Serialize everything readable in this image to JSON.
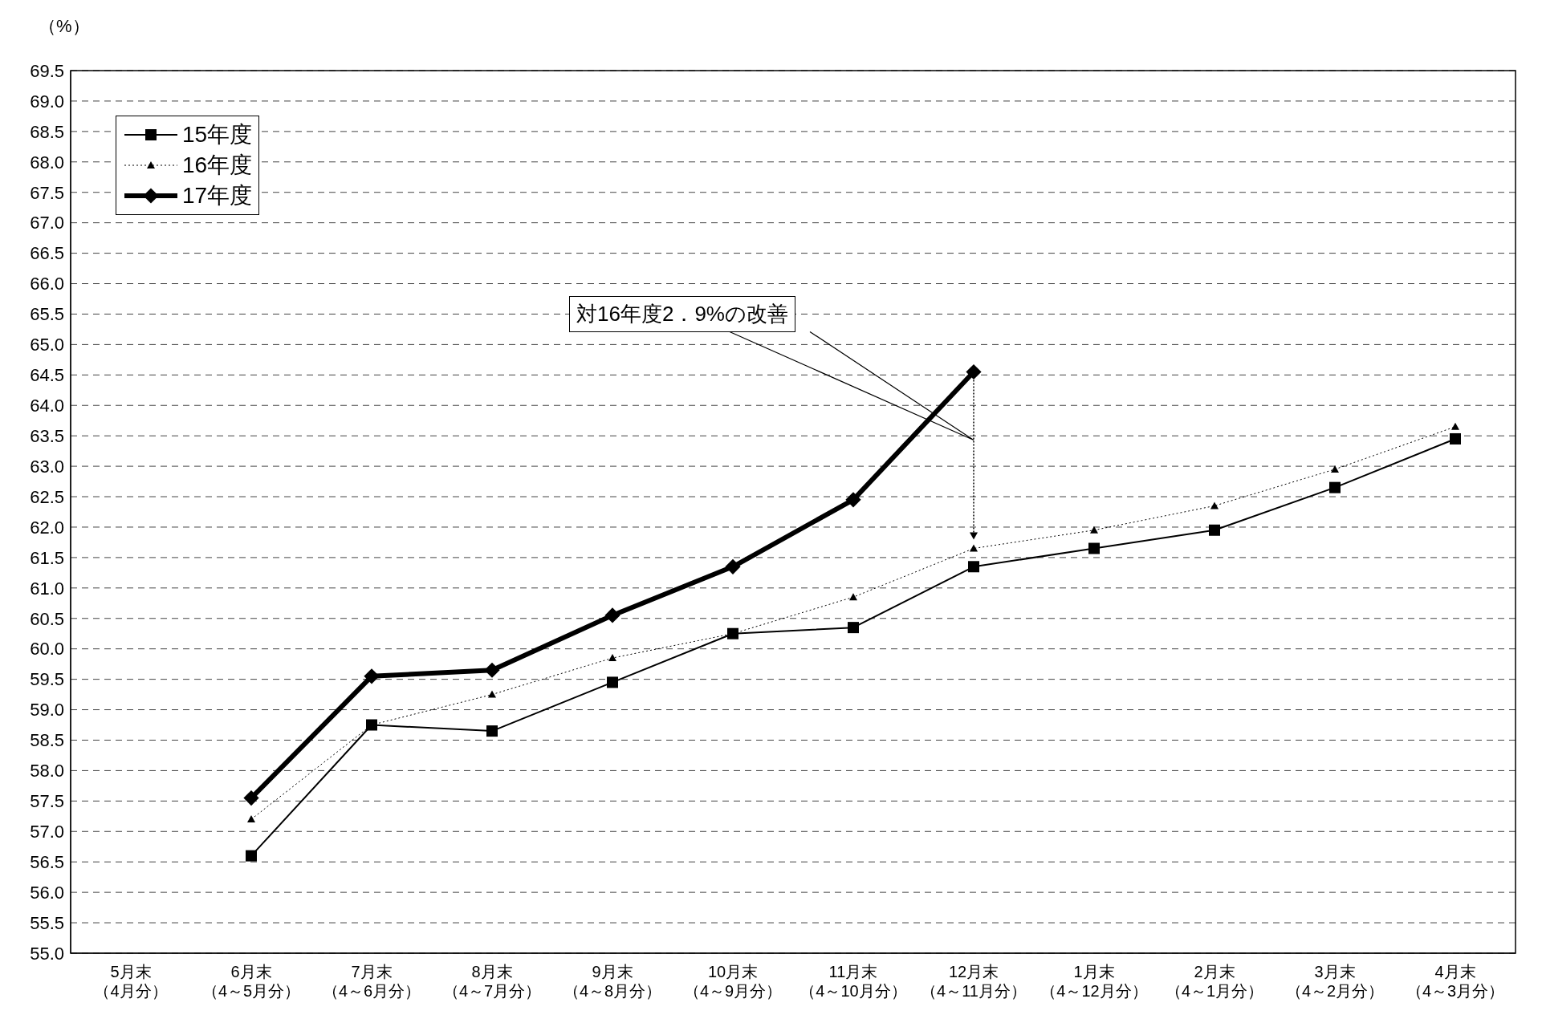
{
  "chart_data": {
    "type": "line",
    "ylabel": "（%）",
    "categories": [
      "5月末（4月分）",
      "6月末（4～5月分）",
      "7月末（4～6月分）",
      "8月末（4～7月分）",
      "9月末（4～8月分）",
      "10月末（4～9月分）",
      "11月末（4～10月分）",
      "12月末（4～11月分）",
      "1月末（4～12月分）",
      "2月末（4～1月分）",
      "3月末（4～2月分）",
      "4月末（4～3月分）"
    ],
    "series": [
      {
        "name": "15年度",
        "color": "#000000",
        "marker": "square",
        "line_style": "solid",
        "values": [
          null,
          56.6,
          58.75,
          58.65,
          59.45,
          60.25,
          60.35,
          61.35,
          61.65,
          61.95,
          62.65,
          63.45
        ]
      },
      {
        "name": "16年度",
        "color": "#000000",
        "marker": "triangle",
        "line_style": "dotted",
        "values": [
          null,
          57.2,
          58.75,
          59.25,
          59.85,
          60.25,
          60.85,
          61.65,
          61.95,
          62.35,
          62.95,
          63.65
        ]
      },
      {
        "name": "17年度",
        "color": "#000000",
        "marker": "diamond",
        "line_style": "solid",
        "values": [
          null,
          57.55,
          59.55,
          59.65,
          60.55,
          61.35,
          62.45,
          64.55,
          null,
          null,
          null,
          null
        ]
      }
    ],
    "ylim": [
      55,
      69.5
    ],
    "yticks": [
      {
        "value": 55,
        "label": "55.0"
      },
      {
        "value": 55.5,
        "label": "55.5"
      },
      {
        "value": 56,
        "label": "56.0"
      },
      {
        "value": 56.5,
        "label": "56.5"
      },
      {
        "value": 57,
        "label": "57.0"
      },
      {
        "value": 57.5,
        "label": "57.5"
      },
      {
        "value": 58,
        "label": "58.0"
      },
      {
        "value": 58.5,
        "label": "58.5"
      },
      {
        "value": 59,
        "label": "59.0"
      },
      {
        "value": 59.5,
        "label": "59.5"
      },
      {
        "value": 60,
        "label": "60.0"
      },
      {
        "value": 60.5,
        "label": "60.5"
      },
      {
        "value": 61,
        "label": "61.0"
      },
      {
        "value": 61.5,
        "label": "61.5"
      },
      {
        "value": 62,
        "label": "62.0"
      },
      {
        "value": 62.5,
        "label": "62.5"
      },
      {
        "value": 63,
        "label": "63.0"
      },
      {
        "value": 63.5,
        "label": "63.5"
      },
      {
        "value": 64,
        "label": "64.0"
      },
      {
        "value": 64.5,
        "label": "64.5"
      },
      {
        "value": 65,
        "label": "65.0"
      },
      {
        "value": 65.5,
        "label": "65.5"
      },
      {
        "value": 66,
        "label": "66.0"
      },
      {
        "value": 66.5,
        "label": "66.5"
      },
      {
        "value": 67,
        "label": "67.0"
      },
      {
        "value": 67.5,
        "label": "67.5"
      },
      {
        "value": 68,
        "label": "68.0"
      },
      {
        "value": 68.5,
        "label": "68.5"
      },
      {
        "value": 69,
        "label": "69.0"
      },
      {
        "value": 69.5,
        "label": "69.5"
      }
    ],
    "grid": "y",
    "legend": "top left",
    "annotations": [
      "対16年度2．9%の改善"
    ]
  }
}
